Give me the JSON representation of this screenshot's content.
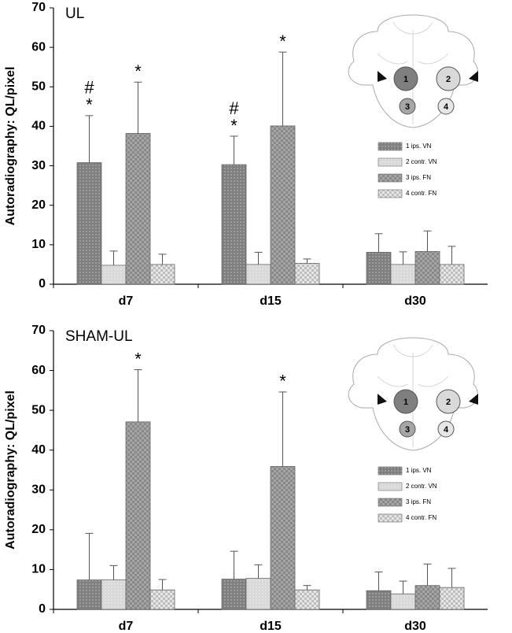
{
  "chart_data": [
    {
      "type": "bar",
      "title": "UL",
      "ylabel": "Autoradiography: QL/pixel",
      "categories": [
        "d7",
        "d15",
        "d30"
      ],
      "ylim": [
        0,
        70
      ],
      "yticks": [
        0,
        10,
        20,
        30,
        40,
        50,
        60,
        70
      ],
      "diagram_labels": [
        "1",
        "2",
        "3",
        "4"
      ],
      "series": [
        {
          "name": "1 ips. VN",
          "color": "#7f7f7f",
          "pattern": "dots",
          "values": [
            30.8,
            30.3,
            8.1
          ],
          "errors": [
            11.9,
            7.2,
            4.7
          ],
          "annotations": [
            [
              "#",
              "*"
            ],
            [
              "#",
              "*"
            ],
            null
          ]
        },
        {
          "name": "2 contr. VN",
          "color": "#d9d9d9",
          "pattern": "dots",
          "values": [
            4.8,
            5.0,
            5.0
          ],
          "errors": [
            3.6,
            3.1,
            3.2
          ],
          "annotations": [
            null,
            null,
            null
          ]
        },
        {
          "name": "3 ips. FN",
          "color": "#a6a6a6",
          "pattern": "checker",
          "values": [
            38.2,
            40.1,
            8.3
          ],
          "errors": [
            13.0,
            18.7,
            5.2
          ],
          "annotations": [
            [
              "*"
            ],
            [
              "*"
            ],
            null
          ]
        },
        {
          "name": "4 contr. FN",
          "color": "#e6e6e6",
          "pattern": "checker",
          "values": [
            5.0,
            5.3,
            5.0
          ],
          "errors": [
            2.6,
            1.1,
            4.6
          ],
          "annotations": [
            null,
            null,
            null
          ]
        }
      ]
    },
    {
      "type": "bar",
      "title": "SHAM-UL",
      "ylabel": "Autoradiography: QL/pixel",
      "categories": [
        "d7",
        "d15",
        "d30"
      ],
      "ylim": [
        0,
        70
      ],
      "yticks": [
        0,
        10,
        20,
        30,
        40,
        50,
        60,
        70
      ],
      "diagram_labels": [
        "1",
        "2",
        "3",
        "4"
      ],
      "series": [
        {
          "name": "1 ips. VN",
          "color": "#7f7f7f",
          "pattern": "dots",
          "values": [
            7.4,
            7.6,
            4.7
          ],
          "errors": [
            11.7,
            7.0,
            4.7
          ],
          "annotations": [
            null,
            null,
            null
          ]
        },
        {
          "name": "2 contr. VN",
          "color": "#d9d9d9",
          "pattern": "dots",
          "values": [
            7.4,
            7.8,
            3.9
          ],
          "errors": [
            3.6,
            3.4,
            3.2
          ],
          "annotations": [
            null,
            null,
            null
          ]
        },
        {
          "name": "3 ips. FN",
          "color": "#a6a6a6",
          "pattern": "checker",
          "values": [
            47.1,
            35.9,
            6.0
          ],
          "errors": [
            13.1,
            18.7,
            5.4
          ],
          "annotations": [
            [
              "*"
            ],
            [
              "*"
            ],
            null
          ]
        },
        {
          "name": "4 contr. FN",
          "color": "#e6e6e6",
          "pattern": "checker",
          "values": [
            4.9,
            4.9,
            5.5
          ],
          "errors": [
            2.6,
            1.1,
            4.8
          ],
          "annotations": [
            null,
            null,
            null
          ]
        }
      ]
    }
  ]
}
